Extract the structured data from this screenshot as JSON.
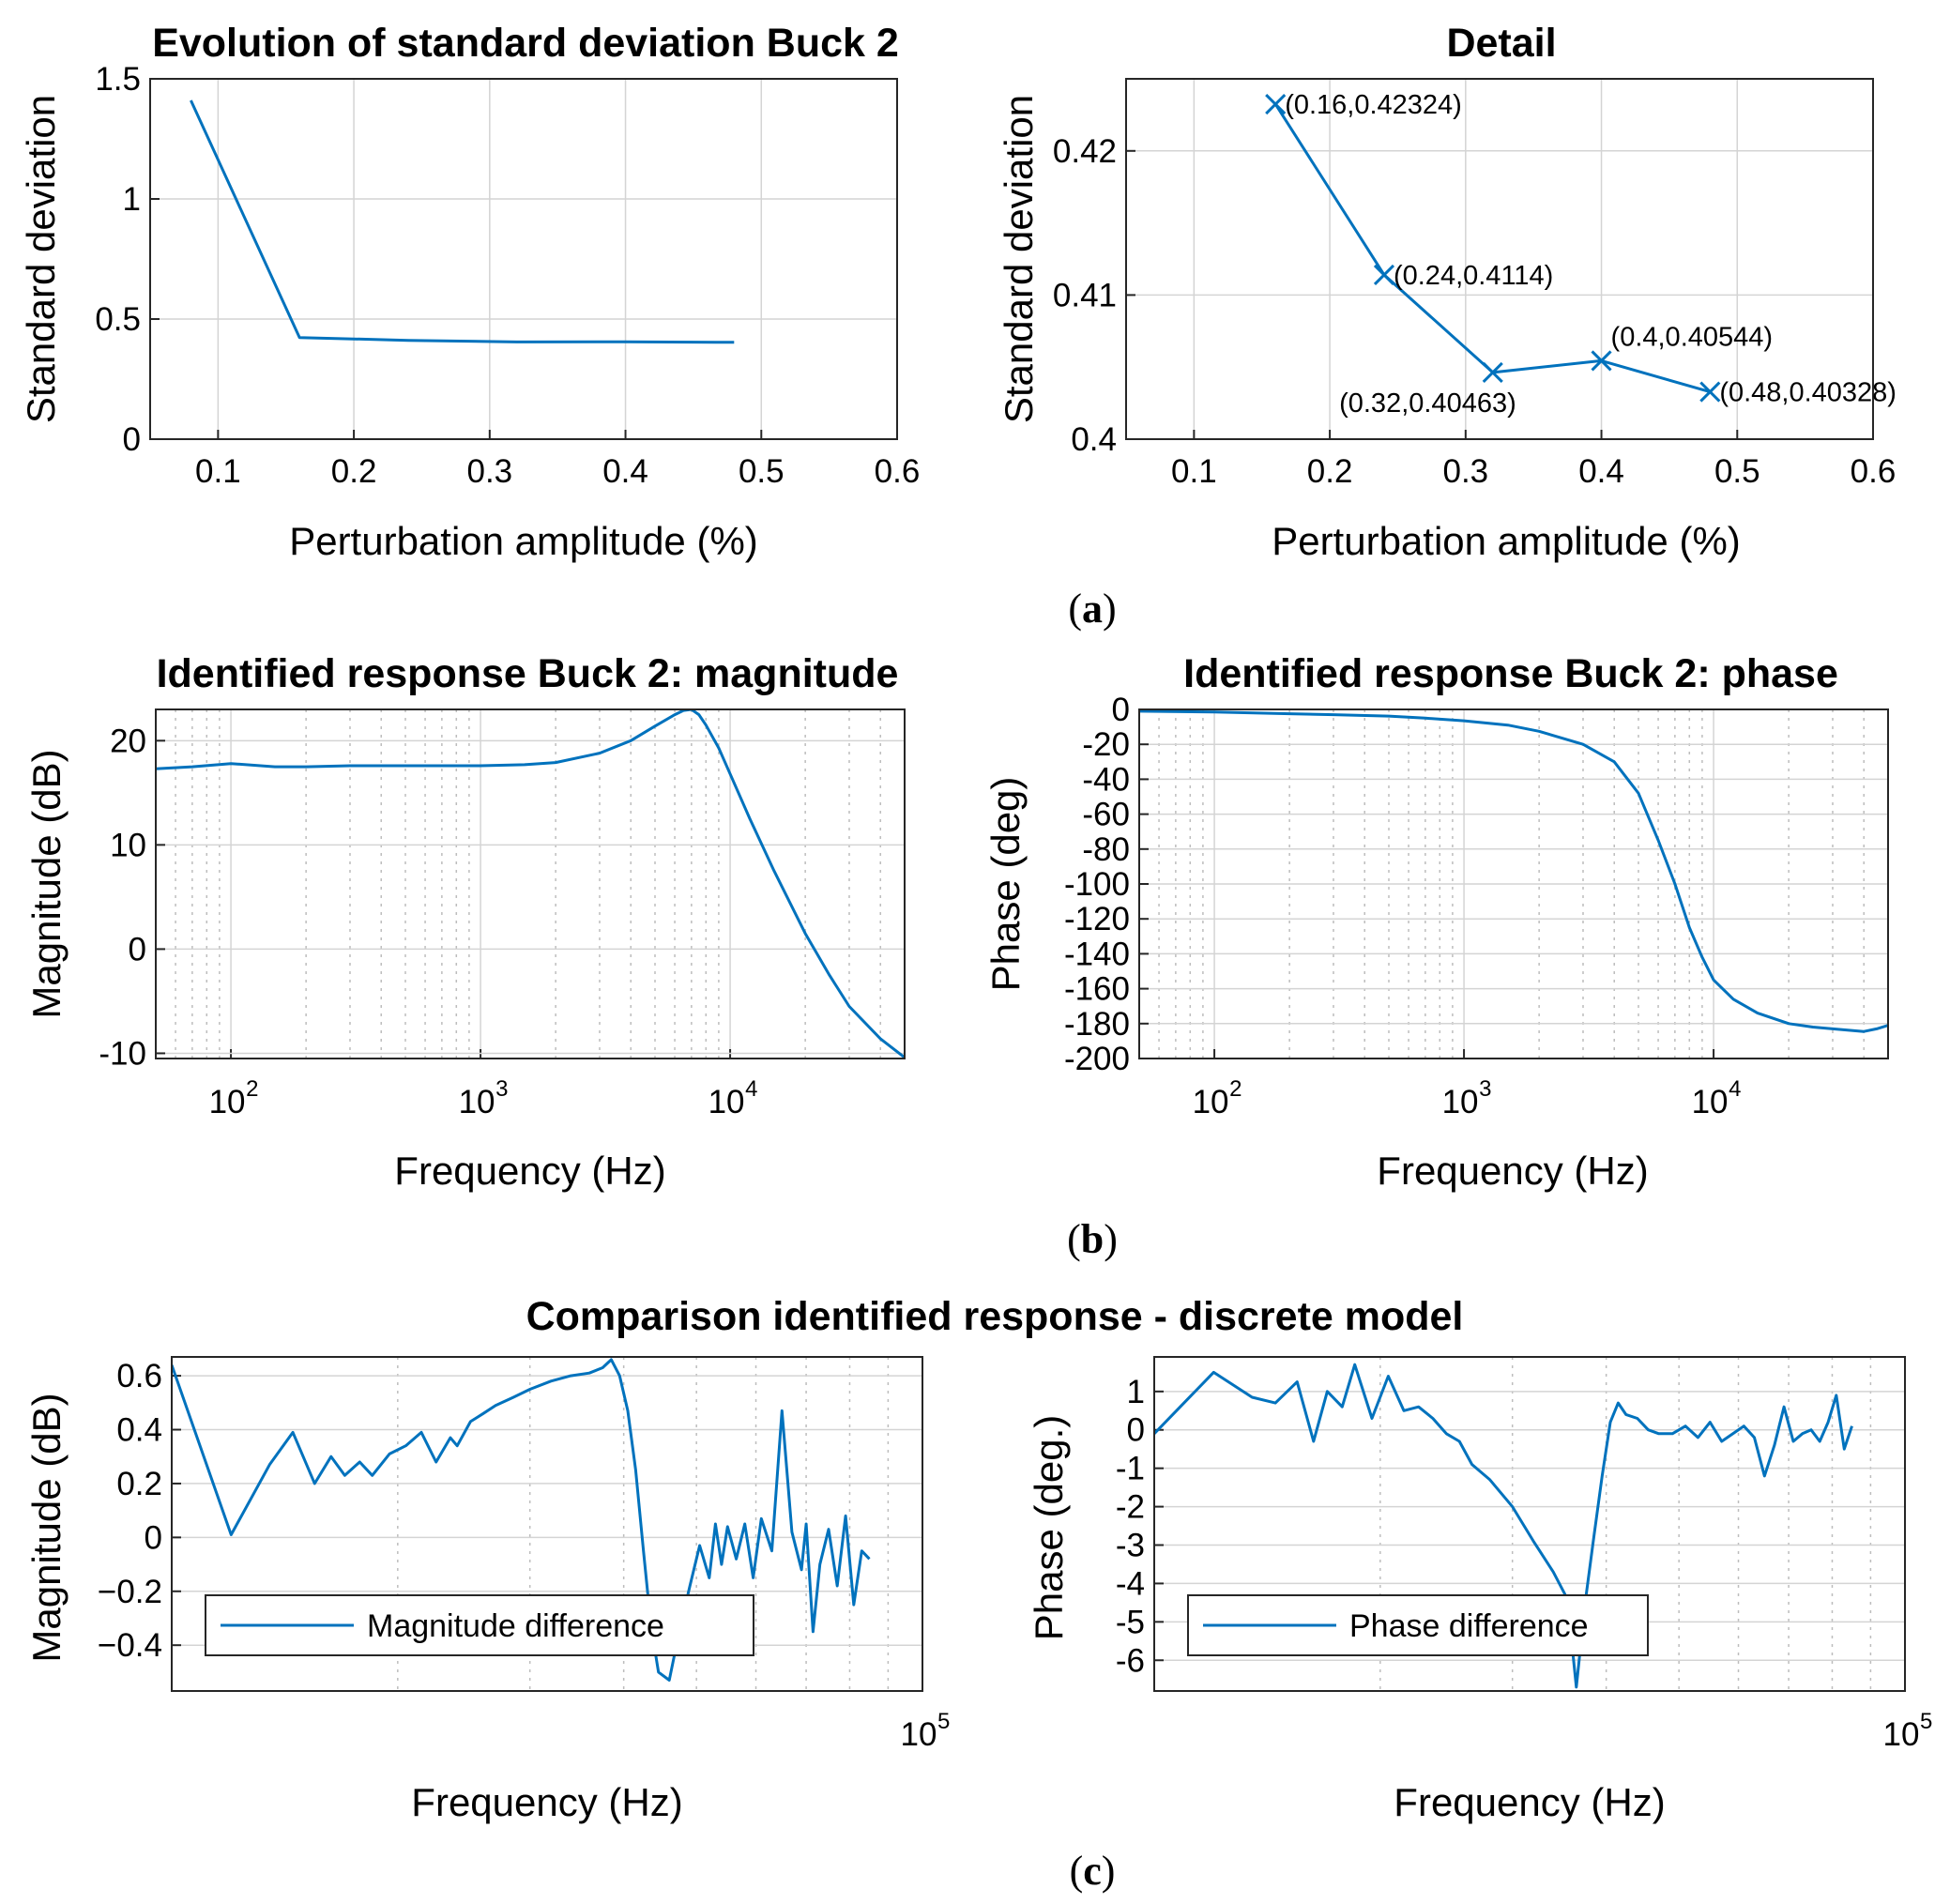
{
  "captions": [
    "a",
    "b",
    "c"
  ],
  "suptitle_c": "Comparison identified response - discrete model",
  "colors": {
    "series": "#0072BD",
    "grid": "#d4d4d4",
    "axis": "#262626"
  },
  "chart_data": [
    {
      "id": "std_evolution",
      "type": "line",
      "title": "Evolution of standard deviation Buck 2",
      "xlabel": "Perturbation amplitude (%)",
      "ylabel": "Standard deviation",
      "xlim": [
        0.05,
        0.6
      ],
      "ylim": [
        0,
        1.5
      ],
      "xticks": [
        0.1,
        0.2,
        0.3,
        0.4,
        0.5,
        0.6
      ],
      "xtick_labels": [
        "0.1",
        "0.2",
        "0.3",
        "0.4",
        "0.5",
        "0.6"
      ],
      "yticks": [
        0,
        0.5,
        1,
        1.5
      ],
      "ytick_labels": [
        "0",
        "0.5",
        "1",
        "1.5"
      ],
      "grid": true,
      "series": [
        {
          "name": "std",
          "x": [
            0.08,
            0.16,
            0.24,
            0.32,
            0.4,
            0.48
          ],
          "y": [
            1.41,
            0.42324,
            0.4114,
            0.40463,
            0.40544,
            0.40328
          ]
        }
      ]
    },
    {
      "id": "std_detail",
      "type": "line",
      "title": "Detail",
      "xlabel": "Perturbation amplitude (%)",
      "ylabel": "Standard deviation",
      "xlim": [
        0.05,
        0.6
      ],
      "ylim": [
        0.4,
        0.425
      ],
      "xticks": [
        0.1,
        0.2,
        0.3,
        0.4,
        0.5,
        0.6
      ],
      "xtick_labels": [
        "0.1",
        "0.2",
        "0.3",
        "0.4",
        "0.5",
        "0.6"
      ],
      "yticks": [
        0.4,
        0.41,
        0.42
      ],
      "ytick_labels": [
        "0.4",
        "0.41",
        "0.42"
      ],
      "grid": true,
      "markers": "x",
      "series": [
        {
          "name": "std",
          "x": [
            0.16,
            0.24,
            0.32,
            0.4,
            0.48
          ],
          "y": [
            0.42324,
            0.4114,
            0.40463,
            0.40544,
            0.40328
          ]
        }
      ],
      "annotations": [
        {
          "text": "(0.16,0.42324)",
          "x": 0.16,
          "y": 0.42324,
          "pos": "right"
        },
        {
          "text": "(0.24,0.4114)",
          "x": 0.24,
          "y": 0.4114,
          "pos": "right"
        },
        {
          "text": "(0.32,0.40463)",
          "x": 0.32,
          "y": 0.40463,
          "pos": "below-left"
        },
        {
          "text": "(0.4,0.40544)",
          "x": 0.4,
          "y": 0.40544,
          "pos": "above"
        },
        {
          "text": "(0.48,0.40328)",
          "x": 0.48,
          "y": 0.40328,
          "pos": "right"
        }
      ]
    },
    {
      "id": "mag_response",
      "type": "line",
      "xscale": "log",
      "title": "Identified response Buck 2: magnitude",
      "xlabel": "Frequency (Hz)",
      "ylabel": "Magnitude (dB)",
      "xlim": [
        50,
        50000
      ],
      "ylim": [
        -10.5,
        23
      ],
      "xticks": [
        100,
        1000,
        10000
      ],
      "xtick_labels": [
        {
          "base": "10",
          "exp": "2"
        },
        {
          "base": "10",
          "exp": "3"
        },
        {
          "base": "10",
          "exp": "4"
        }
      ],
      "yticks": [
        -10,
        0,
        10,
        20
      ],
      "ytick_labels": [
        "-10",
        "0",
        "10",
        "20"
      ],
      "grid": true,
      "series": [
        {
          "name": "magnitude",
          "x": [
            50,
            70,
            100,
            150,
            200,
            300,
            500,
            700,
            1000,
            1500,
            2000,
            3000,
            4000,
            5000,
            6000,
            6500,
            7000,
            7500,
            8000,
            9000,
            10000,
            12000,
            15000,
            20000,
            25000,
            30000,
            40000,
            50000
          ],
          "y": [
            17.3,
            17.5,
            17.8,
            17.5,
            17.5,
            17.6,
            17.6,
            17.6,
            17.6,
            17.7,
            17.9,
            18.8,
            20.0,
            21.4,
            22.5,
            22.9,
            23.0,
            22.5,
            21.5,
            19.3,
            16.8,
            12.5,
            7.5,
            1.5,
            -2.5,
            -5.5,
            -8.6,
            -10.4
          ]
        }
      ]
    },
    {
      "id": "phase_response",
      "type": "line",
      "xscale": "log",
      "title": "Identified response Buck 2: phase",
      "xlabel": "Frequency (Hz)",
      "ylabel": "Phase (deg)",
      "xlim": [
        50,
        50000
      ],
      "ylim": [
        -200,
        0
      ],
      "xticks": [
        100,
        1000,
        10000
      ],
      "xtick_labels": [
        {
          "base": "10",
          "exp": "2"
        },
        {
          "base": "10",
          "exp": "3"
        },
        {
          "base": "10",
          "exp": "4"
        }
      ],
      "yticks": [
        -200,
        -180,
        -160,
        -140,
        -120,
        -100,
        -80,
        -60,
        -40,
        -20,
        0
      ],
      "ytick_labels": [
        "-200",
        "-180",
        "-160",
        "-140",
        "-120",
        "-100",
        "-80",
        "-60",
        "-40",
        "-20",
        "0"
      ],
      "grid": true,
      "series": [
        {
          "name": "phase",
          "x": [
            50,
            100,
            200,
            300,
            500,
            700,
            1000,
            1500,
            2000,
            3000,
            4000,
            5000,
            6000,
            7000,
            8000,
            9000,
            10000,
            12000,
            15000,
            20000,
            25000,
            30000,
            40000,
            45000,
            50000
          ],
          "y": [
            -1,
            -1.5,
            -2.5,
            -3,
            -3.8,
            -5,
            -6.5,
            -9,
            -12.5,
            -20,
            -30,
            -48,
            -75,
            -100,
            -125,
            -142,
            -155,
            -166,
            -174,
            -180,
            -182,
            -183,
            -184.5,
            -183,
            -181
          ]
        }
      ]
    },
    {
      "id": "mag_difference",
      "type": "line",
      "xscale": "log",
      "xlabel": "Frequency (Hz)",
      "ylabel": "Magnitude (dB)",
      "xlim": [
        10000,
        100000
      ],
      "ylim": [
        -0.57,
        0.67
      ],
      "xticks": [
        100000
      ],
      "xtick_labels": [
        {
          "base": "10",
          "exp": "5"
        }
      ],
      "yticks": [
        -0.4,
        -0.2,
        0,
        0.2,
        0.4,
        0.6
      ],
      "ytick_labels": [
        "−0.4",
        "−0.2",
        "0",
        "0.2",
        "0.4",
        "0.6"
      ],
      "grid": true,
      "legend": {
        "label": "Magnitude difference",
        "location": "bottom-left"
      },
      "series": [
        {
          "name": "Magnitude difference",
          "x": [
            10000,
            12000,
            13500,
            14500,
            15500,
            16300,
            17000,
            17800,
            18500,
            19500,
            20500,
            21500,
            22500,
            23500,
            24000,
            25000,
            26000,
            27000,
            28500,
            30000,
            32000,
            34000,
            36000,
            37500,
            38500,
            39500,
            40500,
            41500,
            42500,
            43500,
            44500,
            46000,
            47500,
            49000,
            50500,
            52000,
            53000,
            54000,
            55000,
            56500,
            58000,
            59500,
            61000,
            63000,
            65000,
            67000,
            69000,
            70000,
            71500,
            73000,
            75000,
            77000,
            79000,
            81000,
            83000,
            85000
          ],
          "y": [
            0.64,
            0.01,
            0.27,
            0.39,
            0.2,
            0.3,
            0.23,
            0.28,
            0.23,
            0.31,
            0.34,
            0.39,
            0.28,
            0.37,
            0.34,
            0.43,
            0.46,
            0.49,
            0.52,
            0.55,
            0.58,
            0.6,
            0.61,
            0.63,
            0.66,
            0.6,
            0.47,
            0.25,
            -0.05,
            -0.33,
            -0.5,
            -0.53,
            -0.34,
            -0.18,
            -0.03,
            -0.15,
            0.05,
            -0.1,
            0.04,
            -0.08,
            0.05,
            -0.15,
            0.07,
            -0.05,
            0.47,
            0.02,
            -0.12,
            0.05,
            -0.35,
            -0.1,
            0.03,
            -0.18,
            0.08,
            -0.25,
            -0.05,
            -0.08
          ]
        }
      ]
    },
    {
      "id": "phase_difference",
      "type": "line",
      "xscale": "log",
      "xlabel": "Frequency (Hz)",
      "ylabel": "Phase (deg.)",
      "xlim": [
        10000,
        100000
      ],
      "ylim": [
        -6.8,
        1.9
      ],
      "xticks": [
        100000
      ],
      "xtick_labels": [
        {
          "base": "10",
          "exp": "5"
        }
      ],
      "yticks": [
        -6,
        -5,
        -4,
        -3,
        -2,
        -1,
        0,
        1
      ],
      "ytick_labels": [
        "-6",
        "-5",
        "-4",
        "-3",
        "-2",
        "-1",
        "0",
        "1"
      ],
      "grid": true,
      "legend": {
        "label": "Phase difference",
        "location": "bottom-left"
      },
      "series": [
        {
          "name": "Phase difference",
          "x": [
            10000,
            12000,
            13500,
            14500,
            15500,
            16300,
            17000,
            17800,
            18500,
            19500,
            20500,
            21500,
            22500,
            23500,
            24500,
            25500,
            26500,
            28000,
            30000,
            32000,
            34000,
            35500,
            36500,
            37500,
            38500,
            39500,
            40500,
            41500,
            42500,
            44000,
            45500,
            47000,
            49000,
            51000,
            53000,
            55000,
            57000,
            59000,
            61000,
            63000,
            65000,
            67000,
            69000,
            71000,
            73000,
            75000,
            77000,
            79000,
            81000,
            83000,
            85000
          ],
          "y": [
            -0.1,
            1.5,
            0.85,
            0.7,
            1.25,
            -0.3,
            1.0,
            0.6,
            1.7,
            0.3,
            1.4,
            0.5,
            0.6,
            0.3,
            -0.1,
            -0.3,
            -0.9,
            -1.3,
            -2.0,
            -2.9,
            -3.7,
            -4.4,
            -6.7,
            -4.5,
            -2.8,
            -1.2,
            0.2,
            0.7,
            0.4,
            0.3,
            0.0,
            -0.1,
            -0.1,
            0.1,
            -0.2,
            0.2,
            -0.3,
            -0.1,
            0.1,
            -0.2,
            -1.2,
            -0.4,
            0.6,
            -0.3,
            -0.1,
            0.0,
            -0.3,
            0.2,
            0.9,
            -0.5,
            0.1
          ]
        }
      ]
    }
  ]
}
